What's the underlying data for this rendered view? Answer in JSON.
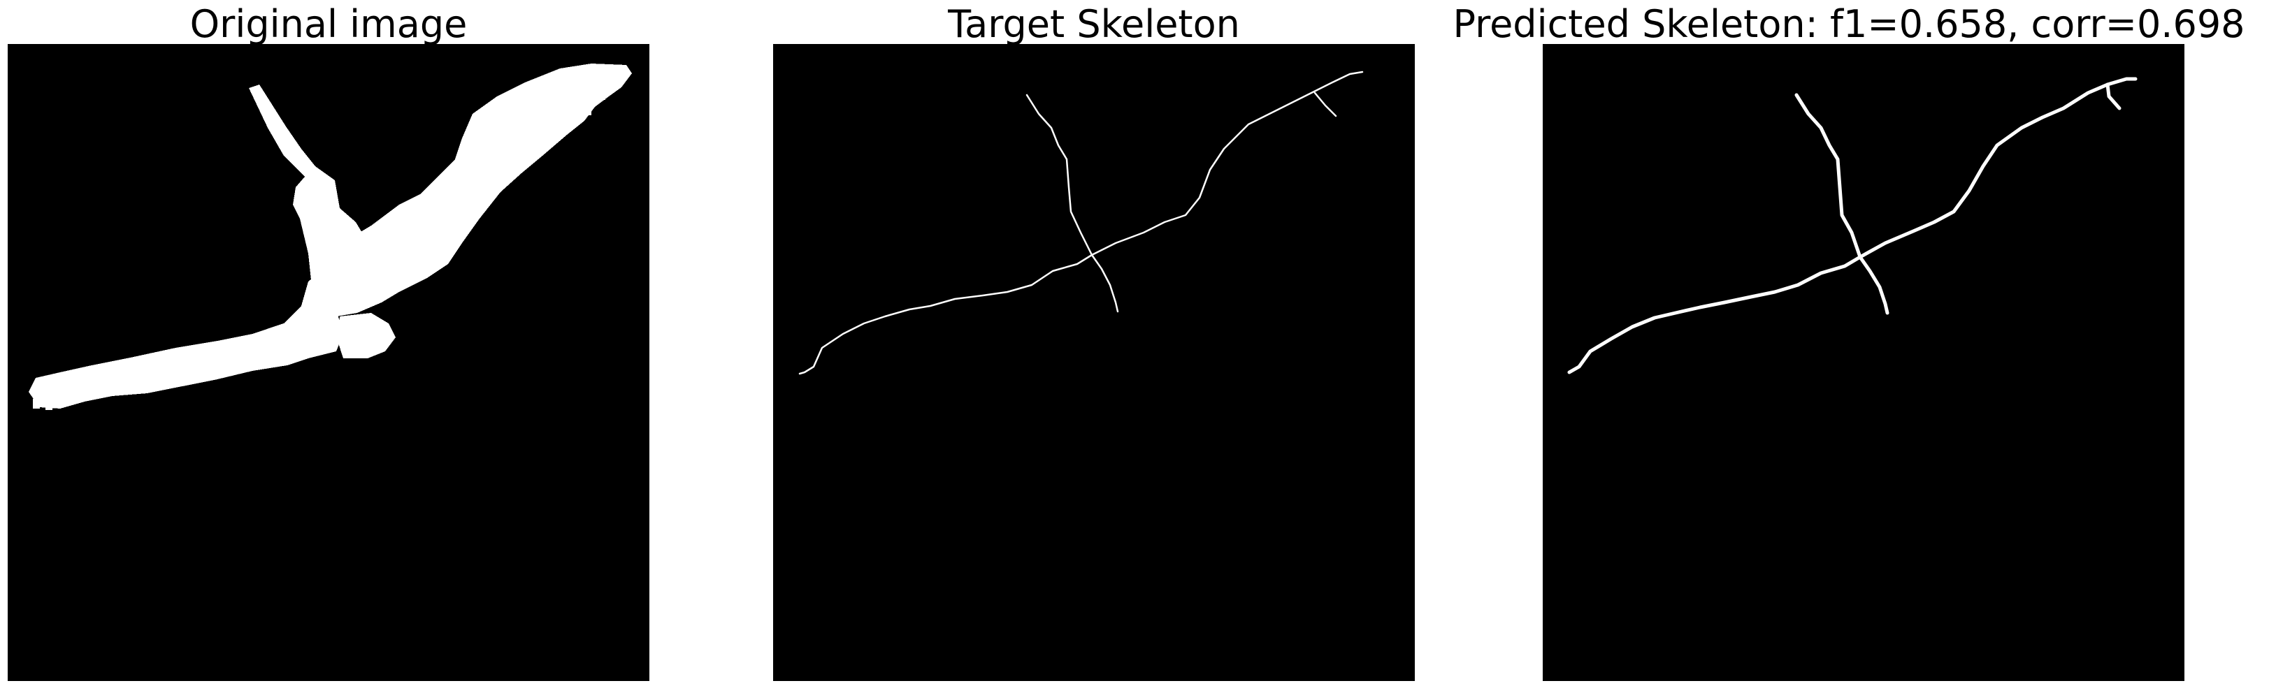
{
  "panels": [
    {
      "title": "Original image",
      "background": "#000000",
      "foreground": "#ffffff"
    },
    {
      "title": "Target Skeleton",
      "background": "#000000",
      "foreground": "#ffffff"
    },
    {
      "title": "Predicted Skeleton: f1=0.658, corr=0.698",
      "background": "#000000",
      "foreground": "#ffffff"
    }
  ]
}
